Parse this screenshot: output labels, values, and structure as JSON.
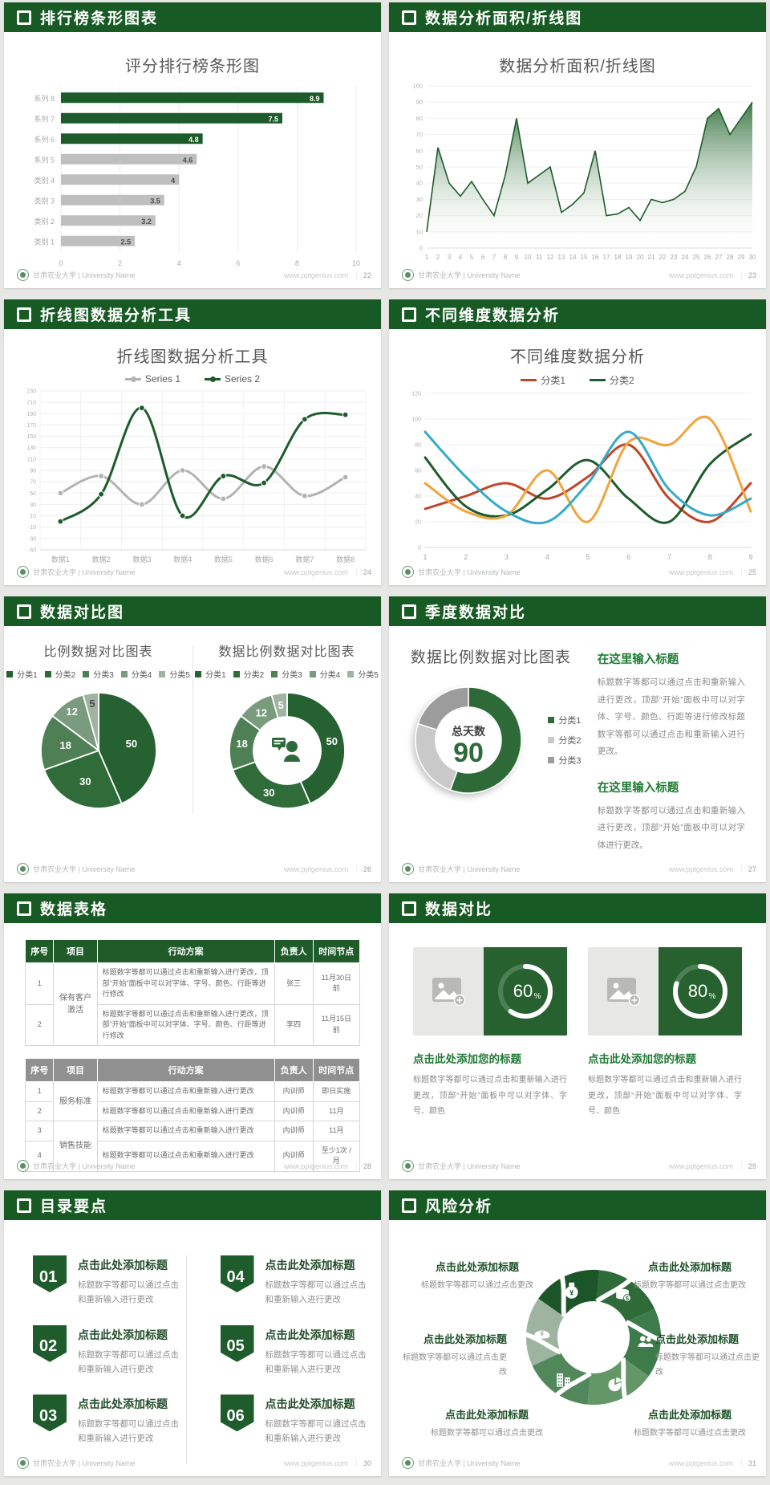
{
  "footer": {
    "org_label": "甘肃农业大学 | University Name",
    "site_label": "www.pptgenius.com",
    "divider": "｜",
    "logo": "university-emblem"
  },
  "slides": [
    {
      "header": "排行榜条形图表",
      "page": "22"
    },
    {
      "header": "数据分析面积/折线图",
      "page": "23"
    },
    {
      "header": "折线图数据分析工具",
      "page": "24"
    },
    {
      "header": "不同维度数据分析",
      "page": "25"
    },
    {
      "header": "数据对比图",
      "page": "26"
    },
    {
      "header": "季度数据对比",
      "page": "27",
      "blocks": [
        {
          "title": "在这里输入标题",
          "body": "标题数字等都可以通过点击和重新输入进行更改，顶部“开始”面板中可以对字体、字号、颜色、行距等进行修改标题数字等都可以通过点击和重新输入进行更改。"
        },
        {
          "title": "在这里输入标题",
          "body": "标题数字等都可以通过点击和重新输入进行更改，顶部“开始”面板中可以对字体进行更改。"
        }
      ]
    },
    {
      "header": "数据表格",
      "page": "28",
      "tables": [
        {
          "header_bg": "#1f5c2a",
          "columns": [
            "序号",
            "项目",
            "行动方案",
            "负责人",
            "时间节点"
          ],
          "rows": [
            {
              "no": "1",
              "project": "保有客户激活",
              "project_span": 2,
              "plan": "标题数字等都可以通过点击和重新输入进行更改，顶部“开始”面板中可以对字体、字号、颜色、行距等进行修改",
              "owner": "张三",
              "time": "11月30日前"
            },
            {
              "no": "2",
              "plan": "标题数字等都可以通过点击和重新输入进行更改，顶部“开始”面板中可以对字体、字号、颜色、行距等进行修改",
              "owner": "李四",
              "time": "11月15日前"
            }
          ]
        },
        {
          "header_bg": "#909090",
          "columns": [
            "序号",
            "项目",
            "行动方案",
            "负责人",
            "时间节点"
          ],
          "rows": [
            {
              "no": "1",
              "project": "服务标准",
              "project_span": 2,
              "plan": "标题数字等都可以通过点击和重新输入进行更改",
              "owner": "内训师",
              "time": "即日实施"
            },
            {
              "no": "2",
              "plan": "标题数字等都可以通过点击和重新输入进行更改",
              "owner": "内训师",
              "time": "11月"
            },
            {
              "no": "3",
              "project": "销售技能",
              "project_span": 2,
              "plan": "标题数字等都可以通过点击和重新输入进行更改",
              "owner": "内训师",
              "time": "11月"
            },
            {
              "no": "4",
              "plan": "标题数字等都可以通过点击和重新输入进行更改",
              "owner": "内训师",
              "time": "至少1次 /月"
            }
          ]
        }
      ]
    },
    {
      "header": "数据对比",
      "page": "29",
      "cards": [
        {
          "percent": 60,
          "percent_label": "60",
          "title": "点击此处添加您的标题",
          "body": "标题数字等都可以通过点击和重新输入进行更改，顶部“开始”面板中可以对字体、字号、颜色"
        },
        {
          "percent": 80,
          "percent_label": "80",
          "title": "点击此处添加您的标题",
          "body": "标题数字等都可以通过点击和重新输入进行更改，顶部“开始”面板中可以对字体、字号、颜色"
        }
      ]
    },
    {
      "header": "目录要点",
      "page": "30",
      "items": [
        {
          "num": "01",
          "title": "点击此处添加标题",
          "body": "标题数字等都可以通过点击和重新输入进行更改"
        },
        {
          "num": "02",
          "title": "点击此处添加标题",
          "body": "标题数字等都可以通过点击和重新输入进行更改"
        },
        {
          "num": "03",
          "title": "点击此处添加标题",
          "body": "标题数字等都可以通过点击和重新输入进行更改"
        },
        {
          "num": "04",
          "title": "点击此处添加标题",
          "body": "标题数字等都可以通过点击和重新输入进行更改"
        },
        {
          "num": "05",
          "title": "点击此处添加标题",
          "body": "标题数字等都可以通过点击和重新输入进行更改"
        },
        {
          "num": "06",
          "title": "点击此处添加标题",
          "body": "标题数字等都可以通过点击和重新输入进行更改"
        }
      ]
    },
    {
      "header": "风险分析",
      "page": "31",
      "items": [
        {
          "icon": "money-bag-icon",
          "title": "点击此处添加标题",
          "body": "标题数字等都可以通过点击更改"
        },
        {
          "icon": "coins-icon",
          "title": "点击此处添加标题",
          "body": "标题数字等都可以通过点击更改"
        },
        {
          "icon": "people-icon",
          "title": "点击此处添加标题",
          "body": "标题数字等都可以通过点击更改"
        },
        {
          "icon": "pie-chart-icon",
          "title": "点击此处添加标题",
          "body": "标题数字等都可以通过点击更改"
        },
        {
          "icon": "building-icon",
          "title": "点击此处添加标题",
          "body": "标题数字等都可以通过点击更改"
        },
        {
          "icon": "cash-pile-icon",
          "title": "点击此处添加标题",
          "body": "标题数字等都可以通过点击更改"
        }
      ],
      "wheel_colors": [
        "#1c5628",
        "#2e6b39",
        "#3e7b4b",
        "#649768",
        "#52875c",
        "#9fb4a0"
      ]
    }
  ],
  "chart_data": [
    {
      "type": "bar",
      "orientation": "horizontal",
      "title": "评分排行榜条形图",
      "categories": [
        "系列 8",
        "系列 7",
        "系列 6",
        "系列 5",
        "类别 4",
        "类别 3",
        "类别 2",
        "类别 1"
      ],
      "values": [
        8.9,
        7.5,
        4.8,
        4.6,
        4,
        3.5,
        3.2,
        2.5
      ],
      "bar_colors": [
        "#1d5c2a",
        "#1d5c2a",
        "#1d5c2a",
        "#bfbfbf",
        "#bfbfbf",
        "#bfbfbf",
        "#bfbfbf",
        "#bfbfbf"
      ],
      "xlim": [
        0,
        10
      ],
      "xticks": [
        0,
        2,
        4,
        6,
        8,
        10
      ],
      "grid": true
    },
    {
      "type": "area",
      "title": "数据分析面积/折线图",
      "x": [
        1,
        2,
        3,
        4,
        5,
        6,
        7,
        8,
        9,
        10,
        11,
        12,
        13,
        14,
        15,
        16,
        17,
        18,
        19,
        20,
        21,
        22,
        23,
        24,
        25,
        26,
        27,
        28,
        29,
        30
      ],
      "values": [
        10,
        62,
        40,
        32,
        41,
        30,
        20,
        45,
        80,
        40,
        45,
        50,
        22,
        27,
        34,
        60,
        20,
        21,
        25,
        17,
        30,
        28,
        30,
        35,
        50,
        80,
        86,
        70,
        80,
        90
      ],
      "ylim": [
        0,
        100
      ],
      "ytick_step": 10,
      "grid": true,
      "line_color": "#1d5c2a"
    },
    {
      "type": "line",
      "title": "折线图数据分析工具",
      "smooth": true,
      "markers": true,
      "categories": [
        "数据1",
        "数据2",
        "数据3",
        "数据4",
        "数据5",
        "数据6",
        "数据7",
        "数据8"
      ],
      "series": [
        {
          "name": "Series 1",
          "color": "#b3b3b3",
          "values": [
            50,
            80,
            30,
            90,
            40,
            97,
            45,
            78
          ]
        },
        {
          "name": "Series 2",
          "color": "#1d5c2a",
          "values": [
            0,
            48,
            200,
            10,
            80,
            68,
            180,
            188
          ]
        }
      ],
      "ylim": [
        -50,
        230
      ],
      "ytick_step": 20,
      "legend_position": "top"
    },
    {
      "type": "line",
      "title": "不同维度数据分析",
      "smooth": true,
      "markers": false,
      "x": [
        1,
        2,
        3,
        4,
        5,
        6,
        7,
        8,
        9
      ],
      "series": [
        {
          "name": "分类1",
          "color": "#c0452a",
          "values": [
            30,
            40,
            50,
            38,
            55,
            80,
            38,
            20,
            50
          ]
        },
        {
          "name": "分类2",
          "color": "#1d5c2a",
          "values": [
            70,
            32,
            25,
            45,
            68,
            38,
            20,
            65,
            88
          ]
        },
        {
          "name": "",
          "color": "#f2a33c",
          "values": [
            50,
            28,
            25,
            60,
            20,
            82,
            80,
            100,
            28
          ]
        },
        {
          "name": "",
          "color": "#35aacb",
          "values": [
            90,
            55,
            28,
            20,
            50,
            90,
            45,
            25,
            38
          ]
        }
      ],
      "ylim": [
        0,
        120
      ],
      "ytick_step": 20,
      "legend_position": "top",
      "legend_entries": [
        "分类1",
        "分类2"
      ]
    },
    {
      "type": "pie",
      "title": "比例数据对比图表",
      "labels": [
        "分类1",
        "分类2",
        "分类3",
        "分类4",
        "分类5"
      ],
      "values": [
        50,
        30,
        18,
        12,
        5
      ],
      "colors": [
        "#266231",
        "#2f6c3a",
        "#4f7f55",
        "#7a9b7e",
        "#9fb4a1"
      ]
    },
    {
      "type": "donut",
      "title": "数据比例数据对比图表",
      "labels": [
        "分类1",
        "分类2",
        "分类3",
        "分类4",
        "分类5"
      ],
      "values": [
        50,
        30,
        18,
        12,
        5
      ],
      "colors": [
        "#266231",
        "#2f6c3a",
        "#4f7f55",
        "#7a9b7e",
        "#9fb4a1"
      ],
      "center_icon": "presenter-icon"
    },
    {
      "type": "donut",
      "title": "数据比例数据对比图表",
      "labels": [
        "分类1",
        "分类2",
        "分类3"
      ],
      "values": [
        50,
        22,
        18
      ],
      "colors": [
        "#2e6b38",
        "#c9c9c9",
        "#9c9c9c"
      ],
      "center_label": "总天数",
      "center_value": "90",
      "legend_position": "right",
      "total": 90
    }
  ]
}
